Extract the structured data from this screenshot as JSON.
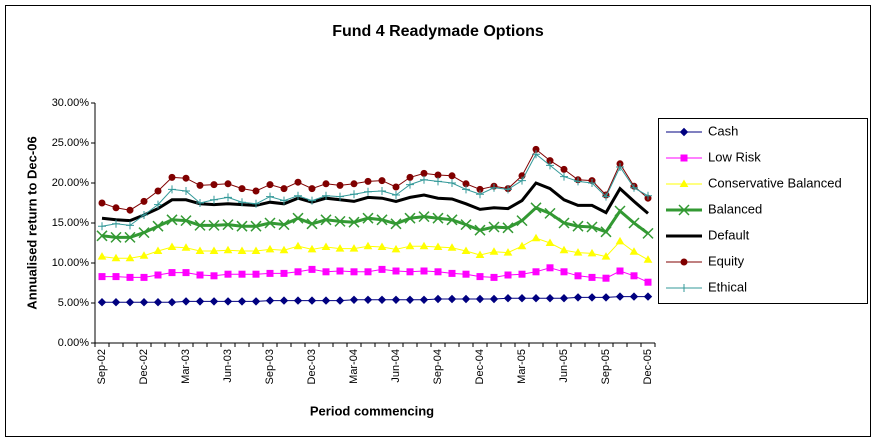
{
  "chart_data": {
    "type": "line",
    "title": "Fund 4 Readymade Options",
    "x_label": "Period commencing",
    "y_label": "Annualised return to Dec-06",
    "categories": [
      "Sep-02",
      null,
      null,
      "Dec-02",
      null,
      null,
      "Mar-03",
      null,
      null,
      "Jun-03",
      null,
      null,
      "Sep-03",
      null,
      null,
      "Dec-03",
      null,
      null,
      "Mar-04",
      null,
      null,
      "Jun-04",
      null,
      null,
      "Sep-04",
      null,
      null,
      "Dec-04",
      null,
      null,
      "Mar-05",
      null,
      null,
      "Jun-05",
      null,
      null,
      "Sep-05",
      null,
      null,
      "Dec-05"
    ],
    "ylim": [
      0,
      30
    ],
    "yticks": [
      {
        "value": 0,
        "label": "0.00%"
      },
      {
        "value": 5,
        "label": "5.00%"
      },
      {
        "value": 10,
        "label": "10.00%"
      },
      {
        "value": 15,
        "label": "15.00%"
      },
      {
        "value": 20,
        "label": "20.00%"
      },
      {
        "value": 25,
        "label": "25.00%"
      },
      {
        "value": 30,
        "label": "30.00%"
      }
    ],
    "grid": false,
    "legend": "right",
    "series": [
      {
        "name": "Cash",
        "color": "#000080",
        "marker": "diamond",
        "line_width": 1,
        "values": [
          5.1,
          5.1,
          5.1,
          5.1,
          5.1,
          5.1,
          5.2,
          5.2,
          5.2,
          5.2,
          5.2,
          5.2,
          5.3,
          5.3,
          5.3,
          5.3,
          5.3,
          5.3,
          5.4,
          5.4,
          5.4,
          5.4,
          5.4,
          5.4,
          5.5,
          5.5,
          5.5,
          5.5,
          5.5,
          5.6,
          5.6,
          5.6,
          5.6,
          5.6,
          5.7,
          5.7,
          5.7,
          5.8,
          5.8,
          5.8
        ]
      },
      {
        "name": "Low Risk",
        "color": "#ff00ff",
        "marker": "square",
        "line_width": 1,
        "values": [
          8.3,
          8.3,
          8.2,
          8.2,
          8.5,
          8.8,
          8.8,
          8.5,
          8.4,
          8.6,
          8.6,
          8.6,
          8.7,
          8.7,
          8.9,
          9.2,
          8.9,
          9.0,
          8.9,
          8.9,
          9.2,
          9.0,
          8.9,
          9.0,
          8.9,
          8.7,
          8.6,
          8.3,
          8.2,
          8.5,
          8.6,
          8.9,
          9.4,
          8.9,
          8.4,
          8.2,
          8.1,
          9.0,
          8.4,
          7.6
        ]
      },
      {
        "name": "Conservative Balanced",
        "color": "#ffff00",
        "marker": "triangle",
        "line_width": 1,
        "values": [
          10.8,
          10.6,
          10.6,
          10.9,
          11.5,
          12.0,
          11.9,
          11.5,
          11.5,
          11.6,
          11.5,
          11.5,
          11.7,
          11.6,
          12.1,
          11.7,
          12.0,
          11.8,
          11.8,
          12.1,
          12.0,
          11.7,
          12.1,
          12.1,
          12.0,
          11.9,
          11.5,
          11.0,
          11.4,
          11.3,
          12.1,
          13.1,
          12.5,
          11.6,
          11.3,
          11.2,
          10.8,
          12.7,
          11.4,
          10.4
        ]
      },
      {
        "name": "Balanced",
        "color": "#339933",
        "marker": "x",
        "line_width": 3,
        "values": [
          13.4,
          13.2,
          13.2,
          13.8,
          14.6,
          15.4,
          15.3,
          14.7,
          14.7,
          14.8,
          14.6,
          14.6,
          15.0,
          14.8,
          15.6,
          14.9,
          15.4,
          15.2,
          15.1,
          15.6,
          15.4,
          14.9,
          15.6,
          15.8,
          15.6,
          15.4,
          14.8,
          14.1,
          14.5,
          14.4,
          15.3,
          16.9,
          16.2,
          15.0,
          14.6,
          14.5,
          13.9,
          16.5,
          15.0,
          13.7
        ]
      },
      {
        "name": "Default",
        "color": "#000000",
        "marker": "none",
        "line_width": 3,
        "values": [
          15.6,
          15.4,
          15.3,
          16.0,
          16.8,
          17.9,
          17.9,
          17.4,
          17.3,
          17.4,
          17.3,
          17.2,
          17.6,
          17.4,
          18.1,
          17.6,
          18.1,
          17.9,
          17.7,
          18.2,
          18.1,
          17.7,
          18.2,
          18.5,
          18.1,
          18.0,
          17.4,
          16.7,
          16.9,
          16.8,
          17.8,
          20.0,
          19.3,
          17.9,
          17.2,
          17.2,
          16.3,
          19.3,
          17.7,
          16.2
        ]
      },
      {
        "name": "Equity",
        "color": "#800000",
        "marker": "circle",
        "line_width": 1,
        "values": [
          17.5,
          16.9,
          16.6,
          17.7,
          19.0,
          20.7,
          20.6,
          19.7,
          19.8,
          19.9,
          19.3,
          19.0,
          19.8,
          19.3,
          20.1,
          19.3,
          19.9,
          19.7,
          19.9,
          20.2,
          20.3,
          19.5,
          20.7,
          21.2,
          21.0,
          20.9,
          19.9,
          19.2,
          19.6,
          19.3,
          20.9,
          24.2,
          22.8,
          21.7,
          20.4,
          20.3,
          18.5,
          22.4,
          19.6,
          18.1
        ]
      },
      {
        "name": "Ethical",
        "color": "#339999",
        "marker": "plus",
        "line_width": 1,
        "values": [
          14.6,
          14.9,
          14.7,
          16.0,
          17.3,
          19.2,
          19.0,
          17.5,
          17.9,
          18.2,
          17.6,
          17.4,
          18.3,
          17.8,
          18.4,
          17.8,
          18.4,
          18.3,
          18.6,
          18.9,
          19.0,
          18.5,
          19.8,
          20.4,
          20.2,
          20.0,
          19.2,
          18.6,
          19.4,
          19.2,
          20.3,
          23.6,
          22.2,
          20.8,
          20.2,
          20.0,
          18.3,
          22.0,
          19.4,
          18.4
        ]
      }
    ]
  }
}
